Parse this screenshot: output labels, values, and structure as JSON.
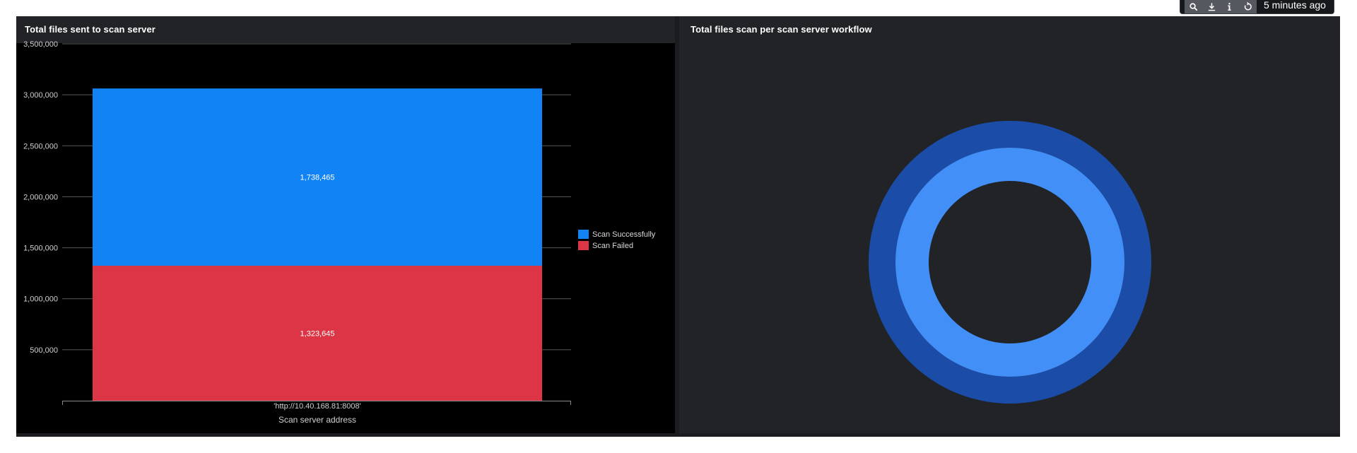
{
  "toolbar": {
    "icons": [
      "search-icon",
      "download-icon",
      "info-icon",
      "refresh-icon"
    ],
    "time_label": "5 minutes ago"
  },
  "left_panel": {
    "title": "Total files sent to scan server"
  },
  "right_panel": {
    "title": "Total files scan per scan server workflow"
  },
  "chart_data": [
    {
      "type": "bar",
      "stacked": true,
      "title": "Total files sent to scan server",
      "categories": [
        "'http://10.40.168.81:8008'"
      ],
      "series": [
        {
          "name": "Scan Failed",
          "values": [
            1323645
          ],
          "color": "#dc3545"
        },
        {
          "name": "Scan Successfully",
          "values": [
            1738465
          ],
          "color": "#1183f4"
        }
      ],
      "data_labels": [
        "1,323,645",
        "1,738,465"
      ],
      "xlabel": "Scan server address",
      "ylabel": "",
      "ylim": [
        0,
        3500000
      ],
      "yticks": [
        500000,
        1000000,
        1500000,
        2000000,
        2500000,
        3000000,
        3500000
      ],
      "ytick_labels": [
        "500,000",
        "1,000,000",
        "1,500,000",
        "2,000,000",
        "2,500,000",
        "3,000,000",
        "3,500,000"
      ],
      "grid": true,
      "legend_position": "right",
      "legend": [
        "Scan Successfully",
        "Scan Failed"
      ]
    },
    {
      "type": "pie",
      "subtype": "nested-donut",
      "title": "Total files scan per scan server workflow",
      "rings": [
        {
          "values": [
            1
          ],
          "color": "#1a4ca8"
        },
        {
          "values": [
            1
          ],
          "color": "#438ff8"
        }
      ]
    }
  ]
}
